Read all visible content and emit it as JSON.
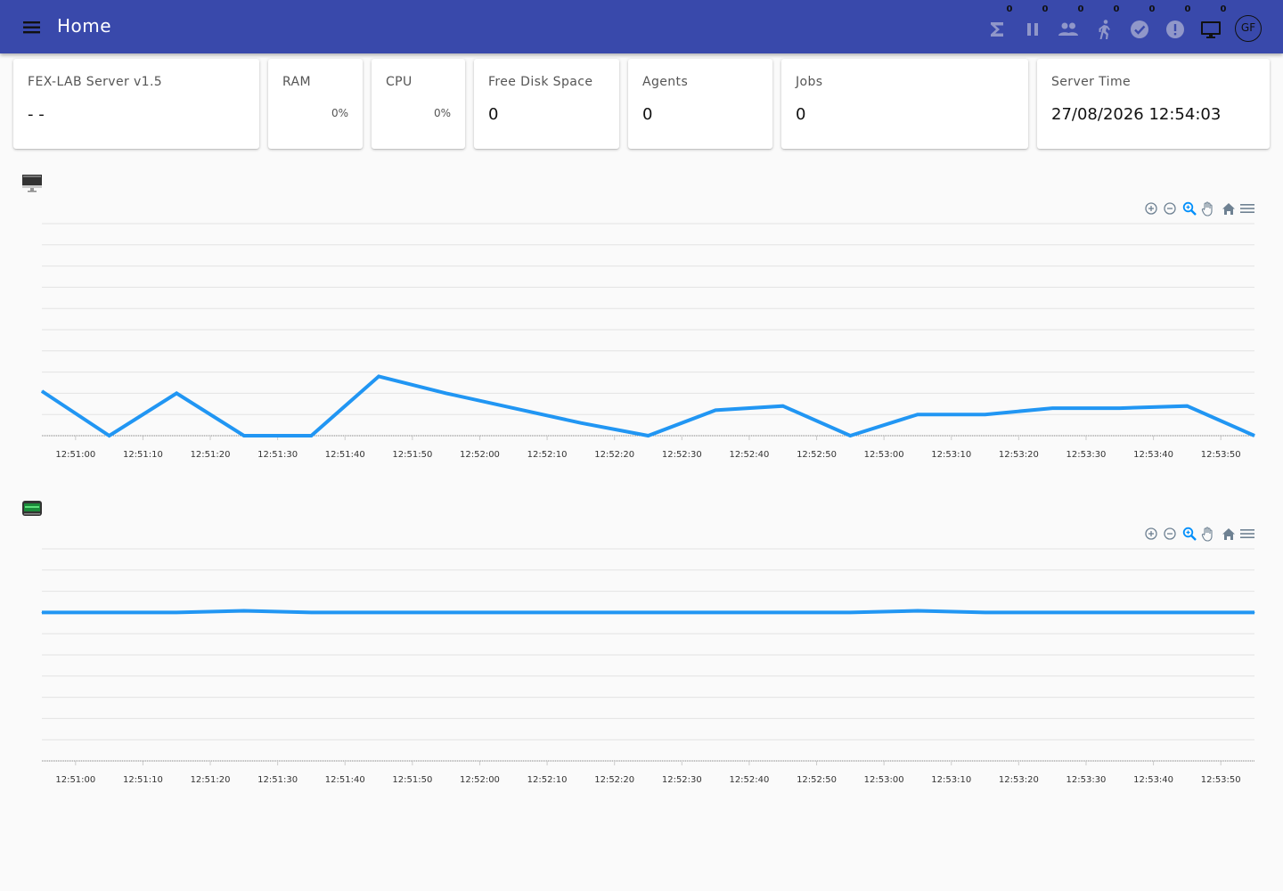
{
  "header": {
    "title": "Home",
    "menu_icon": "menu-icon",
    "status_icons": [
      {
        "name": "sigma-icon",
        "count": "0"
      },
      {
        "name": "pause-icon",
        "count": "0"
      },
      {
        "name": "people-icon",
        "count": "0"
      },
      {
        "name": "run-icon",
        "count": "0"
      },
      {
        "name": "check-circle-icon",
        "count": "0"
      },
      {
        "name": "error-icon",
        "count": "0"
      },
      {
        "name": "desktop-icon",
        "count": "0"
      }
    ],
    "avatar_initials": "GF"
  },
  "cards": [
    {
      "title": "FEX-LAB Server v1.5",
      "value": "- -"
    },
    {
      "title": "RAM",
      "percent": "0%"
    },
    {
      "title": "CPU",
      "percent": "0%"
    },
    {
      "title": "Free Disk Space",
      "value": "0"
    },
    {
      "title": "Agents",
      "value": "0"
    },
    {
      "title": "Jobs",
      "value": "0"
    },
    {
      "title": "Server Time",
      "value": "27/08/2026 12:54:03"
    }
  ],
  "colors": {
    "appbar": "#3949ab",
    "series": "#2196f3"
  },
  "chart_data": [
    {
      "type": "line",
      "icon": "monitor-icon",
      "x": [
        "12:50:55",
        "12:51:05",
        "12:51:15",
        "12:51:25",
        "12:51:35",
        "12:51:45",
        "12:51:55",
        "12:52:05",
        "12:52:15",
        "12:52:25",
        "12:52:35",
        "12:52:45",
        "12:52:55",
        "12:53:05",
        "12:53:15",
        "12:53:25",
        "12:53:35",
        "12:53:45",
        "12:53:55"
      ],
      "series": [
        {
          "values": [
            2.1,
            0,
            2.0,
            0,
            0,
            2.8,
            2.0,
            1.3,
            0.6,
            0,
            1.2,
            1.4,
            0,
            1.0,
            1.0,
            1.3,
            1.3,
            1.4,
            0
          ]
        }
      ],
      "ylim": [
        0,
        10
      ],
      "x_ticks": [
        "12:51:00",
        "12:51:10",
        "12:51:20",
        "12:51:30",
        "12:51:40",
        "12:51:50",
        "12:52:00",
        "12:52:10",
        "12:52:20",
        "12:52:30",
        "12:52:40",
        "12:52:50",
        "12:53:00",
        "12:53:10",
        "12:53:20",
        "12:53:30",
        "12:53:40",
        "12:53:50"
      ],
      "grid": true,
      "toolbar": [
        "zoom-in-icon",
        "zoom-out-icon",
        "zoom-select-icon",
        "pan-hand-icon",
        "home-icon",
        "menu-lines-icon"
      ]
    },
    {
      "type": "line",
      "icon": "pc-icon",
      "x": [
        "12:50:55",
        "12:51:05",
        "12:51:15",
        "12:51:25",
        "12:51:35",
        "12:51:45",
        "12:51:55",
        "12:52:05",
        "12:52:15",
        "12:52:25",
        "12:52:35",
        "12:52:45",
        "12:52:55",
        "12:53:05",
        "12:53:15",
        "12:53:25",
        "12:53:35",
        "12:53:45",
        "12:53:55"
      ],
      "series": [
        {
          "values": [
            7,
            7,
            7,
            7.08,
            7,
            7,
            7,
            7,
            7,
            7,
            7,
            7,
            7,
            7.08,
            7,
            7,
            7,
            7,
            7
          ]
        }
      ],
      "ylim": [
        0,
        10
      ],
      "x_ticks": [
        "12:51:00",
        "12:51:10",
        "12:51:20",
        "12:51:30",
        "12:51:40",
        "12:51:50",
        "12:52:00",
        "12:52:10",
        "12:52:20",
        "12:52:30",
        "12:52:40",
        "12:52:50",
        "12:53:00",
        "12:53:10",
        "12:53:20",
        "12:53:30",
        "12:53:40",
        "12:53:50"
      ],
      "grid": true,
      "toolbar": [
        "zoom-in-icon",
        "zoom-out-icon",
        "zoom-select-icon",
        "pan-hand-icon",
        "home-icon",
        "menu-lines-icon"
      ]
    }
  ]
}
